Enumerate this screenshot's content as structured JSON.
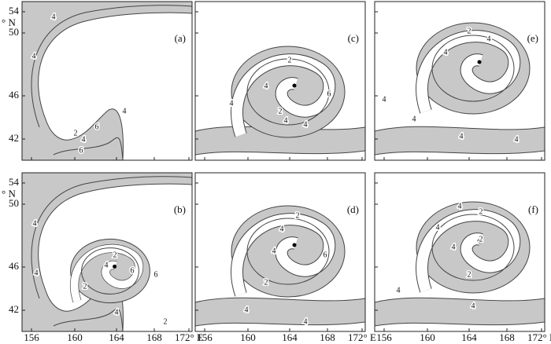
{
  "axes": {
    "y_ticks": [
      "54",
      "50",
      "46",
      "42"
    ],
    "y_unit": "° N",
    "x_ticks": [
      "156",
      "160",
      "164",
      "168",
      "172° E"
    ]
  },
  "panels": [
    {
      "label": "(a)",
      "contour_labels": [
        "4",
        "4",
        "4",
        "2",
        "4",
        "6",
        "6"
      ]
    },
    {
      "label": "(b)",
      "contour_labels": [
        "4",
        "4",
        "2",
        "4",
        "6",
        "2",
        "6",
        "4",
        "2"
      ]
    },
    {
      "label": "(c)",
      "contour_labels": [
        "2",
        "4",
        "4",
        "6",
        "4",
        "2",
        "4"
      ]
    },
    {
      "label": "(d)",
      "contour_labels": [
        "2",
        "4",
        "4",
        "6",
        "2",
        "4",
        "4"
      ]
    },
    {
      "label": "(e)",
      "contour_labels": [
        "2",
        "4",
        "4",
        "4",
        "4",
        "4",
        "4"
      ]
    },
    {
      "label": "(f)",
      "contour_labels": [
        "4",
        "2",
        "4",
        "4",
        "2",
        "2",
        "4",
        "4"
      ]
    }
  ]
}
